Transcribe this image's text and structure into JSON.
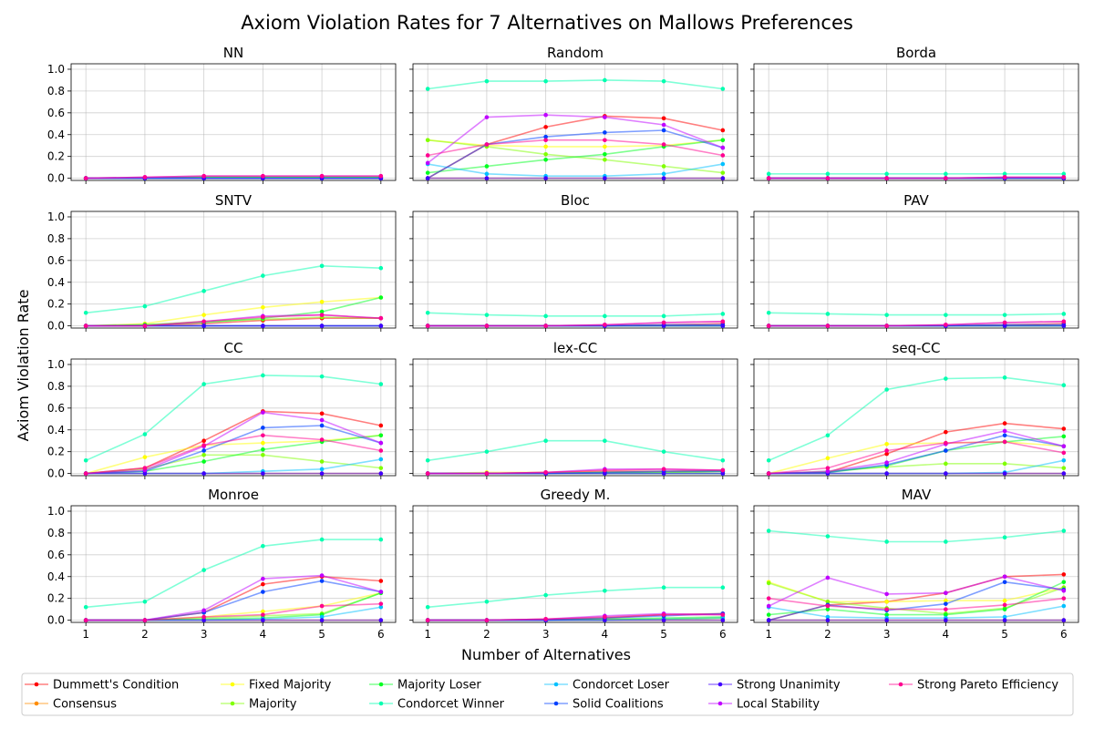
{
  "figure": {
    "title": "Axiom Violation Rates for 7 Alternatives on Mallows Preferences",
    "xlabel": "Number of Alternatives",
    "ylabel": "Axiom Violation Rate"
  },
  "chart_data": {
    "type": "line",
    "x": [
      1,
      2,
      3,
      4,
      5,
      6
    ],
    "xticks": [
      "1",
      "2",
      "3",
      "4",
      "5",
      "6"
    ],
    "yticks": [
      "0.0",
      "0.2",
      "0.4",
      "0.6",
      "0.8",
      "1.0"
    ],
    "ylim": [
      -0.02,
      1.05
    ],
    "grid": true,
    "legend_placement": "bottom",
    "series_styles": [
      {
        "name": "Dummett's Condition",
        "color": "#ff0000"
      },
      {
        "name": "Consensus",
        "color": "#ff8c00"
      },
      {
        "name": "Fixed Majority",
        "color": "#ffff00"
      },
      {
        "name": "Majority",
        "color": "#80ff00"
      },
      {
        "name": "Majority Loser",
        "color": "#00ff20"
      },
      {
        "name": "Condorcet Winner",
        "color": "#00ffb0"
      },
      {
        "name": "Condorcet Loser",
        "color": "#00c0ff"
      },
      {
        "name": "Solid Coalitions",
        "color": "#0040ff"
      },
      {
        "name": "Strong Unanimity",
        "color": "#4000ff"
      },
      {
        "name": "Local Stability",
        "color": "#c000ff"
      },
      {
        "name": "Strong Pareto Efficiency",
        "color": "#ff0090"
      }
    ],
    "panels": [
      {
        "title": "NN",
        "series": [
          [
            0,
            0,
            0,
            0,
            0,
            0
          ],
          [
            0,
            0,
            0,
            0,
            0,
            0
          ],
          [
            0,
            0,
            0.01,
            0.01,
            0.01,
            0.01
          ],
          [
            0,
            0,
            0.01,
            0.01,
            0.01,
            0.01
          ],
          [
            0,
            0,
            0.01,
            0.01,
            0.01,
            0.01
          ],
          [
            0,
            0,
            0,
            0,
            0,
            0
          ],
          [
            0,
            0,
            0,
            0,
            0,
            0
          ],
          [
            0,
            0,
            0,
            0,
            0,
            0
          ],
          [
            0,
            0,
            0,
            0,
            0,
            0
          ],
          [
            0,
            0.01,
            0.02,
            0.02,
            0.02,
            0.02
          ],
          [
            0,
            0.01,
            0.02,
            0.02,
            0.02,
            0.02
          ]
        ]
      },
      {
        "title": "Random",
        "series": [
          [
            0,
            0.31,
            0.47,
            0.57,
            0.55,
            0.44
          ],
          [
            0,
            0,
            0,
            0,
            0,
            0
          ],
          [
            0.35,
            0.3,
            0.29,
            0.29,
            0.3,
            0.35
          ],
          [
            0.35,
            0.29,
            0.22,
            0.17,
            0.11,
            0.05
          ],
          [
            0.05,
            0.11,
            0.17,
            0.22,
            0.29,
            0.35
          ],
          [
            0.82,
            0.89,
            0.89,
            0.9,
            0.89,
            0.82
          ],
          [
            0.13,
            0.04,
            0.02,
            0.02,
            0.04,
            0.13
          ],
          [
            0,
            0.31,
            0.38,
            0.42,
            0.44,
            0.28
          ],
          [
            0,
            0,
            0,
            0,
            0,
            0
          ],
          [
            0.14,
            0.56,
            0.58,
            0.56,
            0.49,
            0.28
          ],
          [
            0.21,
            0.31,
            0.35,
            0.35,
            0.31,
            0.21
          ]
        ]
      },
      {
        "title": "Borda",
        "series": [
          [
            0,
            0,
            0,
            0,
            0,
            0
          ],
          [
            0,
            0,
            0,
            0,
            0,
            0
          ],
          [
            0,
            0,
            0,
            0,
            0,
            0
          ],
          [
            0,
            0,
            0,
            0,
            0,
            0
          ],
          [
            0,
            0,
            0,
            0,
            0,
            0
          ],
          [
            0.04,
            0.04,
            0.04,
            0.04,
            0.04,
            0.04
          ],
          [
            0,
            0,
            0,
            0,
            0,
            0
          ],
          [
            0,
            0,
            0,
            0,
            0,
            0
          ],
          [
            0,
            0,
            0,
            0,
            0,
            0
          ],
          [
            0,
            0,
            0,
            0,
            0.01,
            0.01
          ],
          [
            0,
            0,
            0,
            0,
            0.01,
            0.01
          ]
        ]
      },
      {
        "title": "SNTV",
        "series": [
          [
            0,
            0,
            0.02,
            0.05,
            0.07,
            0.07
          ],
          [
            0,
            0,
            0,
            0,
            0,
            0
          ],
          [
            0,
            0.02,
            0.1,
            0.17,
            0.22,
            0.26
          ],
          [
            0,
            0.01,
            0.04,
            0.06,
            0.08,
            0.07
          ],
          [
            0,
            0.01,
            0.03,
            0.07,
            0.13,
            0.26
          ],
          [
            0.12,
            0.18,
            0.32,
            0.46,
            0.55,
            0.53
          ],
          [
            0,
            0,
            0,
            0,
            0,
            0
          ],
          [
            0,
            0,
            0,
            0,
            0,
            0
          ],
          [
            0,
            0,
            0,
            0,
            0,
            0
          ],
          [
            0,
            0,
            0.04,
            0.09,
            0.1,
            0.07
          ],
          [
            0,
            0,
            0.04,
            0.08,
            0.1,
            0.07
          ]
        ]
      },
      {
        "title": "Bloc",
        "series": [
          [
            0,
            0,
            0,
            0,
            0.01,
            0.02
          ],
          [
            0,
            0,
            0,
            0,
            0,
            0
          ],
          [
            0,
            0,
            0,
            0,
            0,
            0
          ],
          [
            0,
            0,
            0,
            0,
            0,
            0
          ],
          [
            0,
            0,
            0,
            0,
            0,
            0
          ],
          [
            0.12,
            0.1,
            0.09,
            0.09,
            0.09,
            0.11
          ],
          [
            0,
            0,
            0,
            0,
            0,
            0
          ],
          [
            0,
            0,
            0,
            0,
            0.01,
            0.01
          ],
          [
            0,
            0,
            0,
            0,
            0,
            0
          ],
          [
            0,
            0,
            0,
            0.01,
            0.03,
            0.04
          ],
          [
            0,
            0,
            0,
            0.01,
            0.03,
            0.04
          ]
        ]
      },
      {
        "title": "PAV",
        "series": [
          [
            0,
            0,
            0,
            0,
            0.01,
            0.02
          ],
          [
            0,
            0,
            0,
            0,
            0,
            0
          ],
          [
            0,
            0,
            0,
            0,
            0,
            0
          ],
          [
            0,
            0,
            0,
            0,
            0,
            0
          ],
          [
            0,
            0,
            0,
            0,
            0,
            0
          ],
          [
            0.12,
            0.11,
            0.1,
            0.1,
            0.1,
            0.11
          ],
          [
            0,
            0,
            0,
            0,
            0,
            0
          ],
          [
            0,
            0,
            0,
            0,
            0.01,
            0.01
          ],
          [
            0,
            0,
            0,
            0,
            0,
            0
          ],
          [
            0,
            0,
            0,
            0.01,
            0.03,
            0.04
          ],
          [
            0,
            0,
            0,
            0.01,
            0.03,
            0.04
          ]
        ]
      },
      {
        "title": "CC",
        "series": [
          [
            0,
            0.05,
            0.3,
            0.57,
            0.55,
            0.44
          ],
          [
            0,
            0,
            0,
            0,
            0,
            0
          ],
          [
            0,
            0.15,
            0.26,
            0.28,
            0.3,
            0.35
          ],
          [
            0,
            0.04,
            0.17,
            0.17,
            0.11,
            0.05
          ],
          [
            0,
            0.02,
            0.11,
            0.22,
            0.29,
            0.35
          ],
          [
            0.12,
            0.36,
            0.82,
            0.9,
            0.89,
            0.82
          ],
          [
            0,
            0,
            0,
            0.02,
            0.04,
            0.13
          ],
          [
            0,
            0.02,
            0.21,
            0.42,
            0.44,
            0.28
          ],
          [
            0,
            0,
            0,
            0,
            0,
            0
          ],
          [
            0,
            0.03,
            0.25,
            0.56,
            0.49,
            0.28
          ],
          [
            0,
            0.05,
            0.26,
            0.35,
            0.31,
            0.21
          ]
        ]
      },
      {
        "title": "lex-CC",
        "series": [
          [
            0,
            0,
            0.01,
            0.02,
            0.02,
            0.03
          ],
          [
            0,
            0,
            0,
            0,
            0,
            0
          ],
          [
            0,
            0.01,
            0.01,
            0.01,
            0.01,
            0.02
          ],
          [
            0,
            0,
            0,
            0,
            0,
            0
          ],
          [
            0,
            0,
            0,
            0.01,
            0.01,
            0.02
          ],
          [
            0.12,
            0.2,
            0.3,
            0.3,
            0.2,
            0.12
          ],
          [
            0,
            0,
            0,
            0,
            0,
            0
          ],
          [
            0,
            0,
            0,
            0.01,
            0.02,
            0.02
          ],
          [
            0,
            0,
            0,
            0,
            0,
            0
          ],
          [
            0,
            0,
            0.01,
            0.04,
            0.04,
            0.03
          ],
          [
            0,
            0,
            0.01,
            0.03,
            0.04,
            0.03
          ]
        ]
      },
      {
        "title": "seq-CC",
        "series": [
          [
            0,
            0.01,
            0.18,
            0.38,
            0.46,
            0.41
          ],
          [
            0,
            0,
            0,
            0,
            0,
            0
          ],
          [
            0,
            0.14,
            0.27,
            0.28,
            0.29,
            0.25
          ],
          [
            0,
            0.02,
            0.06,
            0.09,
            0.09,
            0.05
          ],
          [
            0,
            0.01,
            0.07,
            0.21,
            0.29,
            0.34
          ],
          [
            0.12,
            0.35,
            0.77,
            0.87,
            0.88,
            0.81
          ],
          [
            0,
            0,
            0,
            0,
            0.01,
            0.12
          ],
          [
            0,
            0.01,
            0.08,
            0.21,
            0.35,
            0.25
          ],
          [
            0,
            0,
            0,
            0,
            0,
            0
          ],
          [
            0,
            0.02,
            0.1,
            0.27,
            0.39,
            0.25
          ],
          [
            0,
            0.05,
            0.21,
            0.28,
            0.29,
            0.19
          ]
        ]
      },
      {
        "title": "Monroe",
        "series": [
          [
            0,
            0,
            0.07,
            0.33,
            0.4,
            0.36
          ],
          [
            0,
            0,
            0,
            0,
            0,
            0
          ],
          [
            0,
            0,
            0.03,
            0.08,
            0.13,
            0.25
          ],
          [
            0,
            0,
            0.02,
            0.04,
            0.06,
            0.25
          ],
          [
            0,
            0,
            0.01,
            0.02,
            0.05,
            0.25
          ],
          [
            0.12,
            0.17,
            0.46,
            0.68,
            0.74,
            0.74
          ],
          [
            0,
            0,
            0,
            0.01,
            0.03,
            0.12
          ],
          [
            0,
            0,
            0.07,
            0.26,
            0.36,
            0.26
          ],
          [
            0,
            0,
            0,
            0,
            0,
            0
          ],
          [
            0,
            0,
            0.09,
            0.38,
            0.41,
            0.26
          ],
          [
            0,
            0,
            0.03,
            0.05,
            0.13,
            0.15
          ]
        ]
      },
      {
        "title": "Greedy M.",
        "series": [
          [
            0,
            0,
            0.01,
            0.02,
            0.05,
            0.06
          ],
          [
            0,
            0,
            0,
            0,
            0,
            0
          ],
          [
            0,
            0,
            0,
            0.01,
            0.01,
            0.02
          ],
          [
            0,
            0,
            0,
            0,
            0.01,
            0.02
          ],
          [
            0,
            0,
            0,
            0.01,
            0.02,
            0.03
          ],
          [
            0.12,
            0.17,
            0.23,
            0.27,
            0.3,
            0.3
          ],
          [
            0,
            0,
            0,
            0,
            0.01,
            0.02
          ],
          [
            0,
            0,
            0,
            0.02,
            0.04,
            0.06
          ],
          [
            0,
            0,
            0,
            0,
            0,
            0
          ],
          [
            0,
            0,
            0.01,
            0.04,
            0.06,
            0.05
          ],
          [
            0,
            0,
            0.01,
            0.03,
            0.05,
            0.05
          ]
        ]
      },
      {
        "title": "MAV",
        "series": [
          [
            0,
            0.14,
            0.17,
            0.25,
            0.4,
            0.42
          ],
          [
            0,
            0,
            0,
            0,
            0,
            0
          ],
          [
            0.35,
            0.17,
            0.17,
            0.18,
            0.18,
            0.3
          ],
          [
            0.34,
            0.17,
            0.11,
            0.06,
            0.11,
            0.3
          ],
          [
            0.05,
            0.1,
            0.05,
            0.05,
            0.1,
            0.35
          ],
          [
            0.82,
            0.77,
            0.72,
            0.72,
            0.76,
            0.82
          ],
          [
            0.12,
            0.03,
            0.02,
            0.02,
            0.03,
            0.13
          ],
          [
            0,
            0.14,
            0.09,
            0.15,
            0.35,
            0.28
          ],
          [
            0,
            0,
            0,
            0,
            0,
            0
          ],
          [
            0.13,
            0.39,
            0.24,
            0.25,
            0.4,
            0.27
          ],
          [
            0.2,
            0.13,
            0.1,
            0.1,
            0.14,
            0.2
          ]
        ]
      }
    ]
  }
}
